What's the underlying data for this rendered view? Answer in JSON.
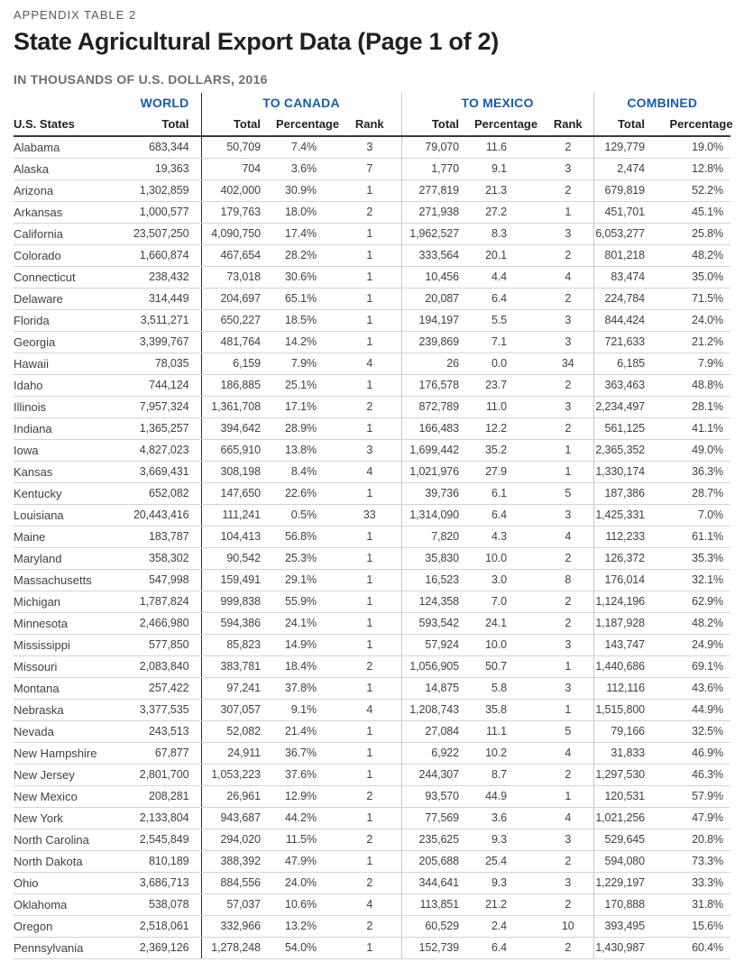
{
  "page": {
    "eyebrow": "APPENDIX TABLE 2",
    "title": "State Agricultural Export Data (Page 1 of 2)",
    "subtitle": "IN THOUSANDS OF U.S. DOLLARS, 2016"
  },
  "colors": {
    "accent_blue": "#1a5ca8",
    "title_black": "#231f20",
    "subtitle_gray": "#6d6e71",
    "body_text": "#414042",
    "rule_dark": "#2f2f30",
    "rule_light": "#c6c8ca"
  },
  "table": {
    "group_headers": {
      "world": "WORLD",
      "canada": "TO CANADA",
      "mexico": "TO MEXICO",
      "combined": "COMBINED"
    },
    "column_headers": {
      "state": "U.S. States",
      "total": "Total",
      "percentage": "Percentage",
      "rank": "Rank"
    },
    "column_keys": [
      "state",
      "world-total",
      "canada-total",
      "canada-percentage",
      "canada-rank",
      "mexico-total",
      "mexico-percentage",
      "mexico-rank",
      "combined-total",
      "combined-percentage"
    ],
    "rows": [
      [
        "Alabama",
        "683,344",
        "50,709",
        "7.4%",
        "3",
        "79,070",
        "11.6",
        "2",
        "129,779",
        "19.0%"
      ],
      [
        "Alaska",
        "19,363",
        "704",
        "3.6%",
        "7",
        "1,770",
        "9.1",
        "3",
        "2,474",
        "12.8%"
      ],
      [
        "Arizona",
        "1,302,859",
        "402,000",
        "30.9%",
        "1",
        "277,819",
        "21.3",
        "2",
        "679,819",
        "52.2%"
      ],
      [
        "Arkansas",
        "1,000,577",
        "179,763",
        "18.0%",
        "2",
        "271,938",
        "27.2",
        "1",
        "451,701",
        "45.1%"
      ],
      [
        "California",
        "23,507,250",
        "4,090,750",
        "17.4%",
        "1",
        "1,962,527",
        "8.3",
        "3",
        "6,053,277",
        "25.8%"
      ],
      [
        "Colorado",
        "1,660,874",
        "467,654",
        "28.2%",
        "1",
        "333,564",
        "20.1",
        "2",
        "801,218",
        "48.2%"
      ],
      [
        "Connecticut",
        "238,432",
        "73,018",
        "30.6%",
        "1",
        "10,456",
        "4.4",
        "4",
        "83,474",
        "35.0%"
      ],
      [
        "Delaware",
        "314,449",
        "204,697",
        "65.1%",
        "1",
        "20,087",
        "6.4",
        "2",
        "224,784",
        "71.5%"
      ],
      [
        "Florida",
        "3,511,271",
        "650,227",
        "18.5%",
        "1",
        "194,197",
        "5.5",
        "3",
        "844,424",
        "24.0%"
      ],
      [
        "Georgia",
        "3,399,767",
        "481,764",
        "14.2%",
        "1",
        "239,869",
        "7.1",
        "3",
        "721,633",
        "21.2%"
      ],
      [
        "Hawaii",
        "78,035",
        "6,159",
        "7.9%",
        "4",
        "26",
        "0.0",
        "34",
        "6,185",
        "7.9%"
      ],
      [
        "Idaho",
        "744,124",
        "186,885",
        "25.1%",
        "1",
        "176,578",
        "23.7",
        "2",
        "363,463",
        "48.8%"
      ],
      [
        "Illinois",
        "7,957,324",
        "1,361,708",
        "17.1%",
        "2",
        "872,789",
        "11.0",
        "3",
        "2,234,497",
        "28.1%"
      ],
      [
        "Indiana",
        "1,365,257",
        "394,642",
        "28.9%",
        "1",
        "166,483",
        "12.2",
        "2",
        "561,125",
        "41.1%"
      ],
      [
        "Iowa",
        "4,827,023",
        "665,910",
        "13.8%",
        "3",
        "1,699,442",
        "35.2",
        "1",
        "2,365,352",
        "49.0%"
      ],
      [
        "Kansas",
        "3,669,431",
        "308,198",
        "8.4%",
        "4",
        "1,021,976",
        "27.9",
        "1",
        "1,330,174",
        "36.3%"
      ],
      [
        "Kentucky",
        "652,082",
        "147,650",
        "22.6%",
        "1",
        "39,736",
        "6.1",
        "5",
        "187,386",
        "28.7%"
      ],
      [
        "Louisiana",
        "20,443,416",
        "111,241",
        "0.5%",
        "33",
        "1,314,090",
        "6.4",
        "3",
        "1,425,331",
        "7.0%"
      ],
      [
        "Maine",
        "183,787",
        "104,413",
        "56.8%",
        "1",
        "7,820",
        "4.3",
        "4",
        "112,233",
        "61.1%"
      ],
      [
        "Maryland",
        "358,302",
        "90,542",
        "25.3%",
        "1",
        "35,830",
        "10.0",
        "2",
        "126,372",
        "35.3%"
      ],
      [
        "Massachusetts",
        "547,998",
        "159,491",
        "29.1%",
        "1",
        "16,523",
        "3.0",
        "8",
        "176,014",
        "32.1%"
      ],
      [
        "Michigan",
        "1,787,824",
        "999,838",
        "55.9%",
        "1",
        "124,358",
        "7.0",
        "2",
        "1,124,196",
        "62.9%"
      ],
      [
        "Minnesota",
        "2,466,980",
        "594,386",
        "24.1%",
        "1",
        "593,542",
        "24.1",
        "2",
        "1,187,928",
        "48.2%"
      ],
      [
        "Mississippi",
        "577,850",
        "85,823",
        "14.9%",
        "1",
        "57,924",
        "10.0",
        "3",
        "143,747",
        "24.9%"
      ],
      [
        "Missouri",
        "2,083,840",
        "383,781",
        "18.4%",
        "2",
        "1,056,905",
        "50.7",
        "1",
        "1,440,686",
        "69.1%"
      ],
      [
        "Montana",
        "257,422",
        "97,241",
        "37.8%",
        "1",
        "14,875",
        "5.8",
        "3",
        "112,116",
        "43.6%"
      ],
      [
        "Nebraska",
        "3,377,535",
        "307,057",
        "9.1%",
        "4",
        "1,208,743",
        "35.8",
        "1",
        "1,515,800",
        "44.9%"
      ],
      [
        "Nevada",
        "243,513",
        "52,082",
        "21.4%",
        "1",
        "27,084",
        "11.1",
        "5",
        "79,166",
        "32.5%"
      ],
      [
        "New Hampshire",
        "67,877",
        "24,911",
        "36.7%",
        "1",
        "6,922",
        "10.2",
        "4",
        "31,833",
        "46.9%"
      ],
      [
        "New Jersey",
        "2,801,700",
        "1,053,223",
        "37.6%",
        "1",
        "244,307",
        "8.7",
        "2",
        "1,297,530",
        "46.3%"
      ],
      [
        "New Mexico",
        "208,281",
        "26,961",
        "12.9%",
        "2",
        "93,570",
        "44.9",
        "1",
        "120,531",
        "57.9%"
      ],
      [
        "New York",
        "2,133,804",
        "943,687",
        "44.2%",
        "1",
        "77,569",
        "3.6",
        "4",
        "1,021,256",
        "47.9%"
      ],
      [
        "North Carolina",
        "2,545,849",
        "294,020",
        "11.5%",
        "2",
        "235,625",
        "9.3",
        "3",
        "529,645",
        "20.8%"
      ],
      [
        "North Dakota",
        "810,189",
        "388,392",
        "47.9%",
        "1",
        "205,688",
        "25.4",
        "2",
        "594,080",
        "73.3%"
      ],
      [
        "Ohio",
        "3,686,713",
        "884,556",
        "24.0%",
        "2",
        "344,641",
        "9.3",
        "3",
        "1,229,197",
        "33.3%"
      ],
      [
        "Oklahoma",
        "538,078",
        "57,037",
        "10.6%",
        "4",
        "113,851",
        "21.2",
        "2",
        "170,888",
        "31.8%"
      ],
      [
        "Oregon",
        "2,518,061",
        "332,966",
        "13.2%",
        "2",
        "60,529",
        "2.4",
        "10",
        "393,495",
        "15.6%"
      ],
      [
        "Pennsylvania",
        "2,369,126",
        "1,278,248",
        "54.0%",
        "1",
        "152,739",
        "6.4",
        "2",
        "1,430,987",
        "60.4%"
      ]
    ]
  }
}
